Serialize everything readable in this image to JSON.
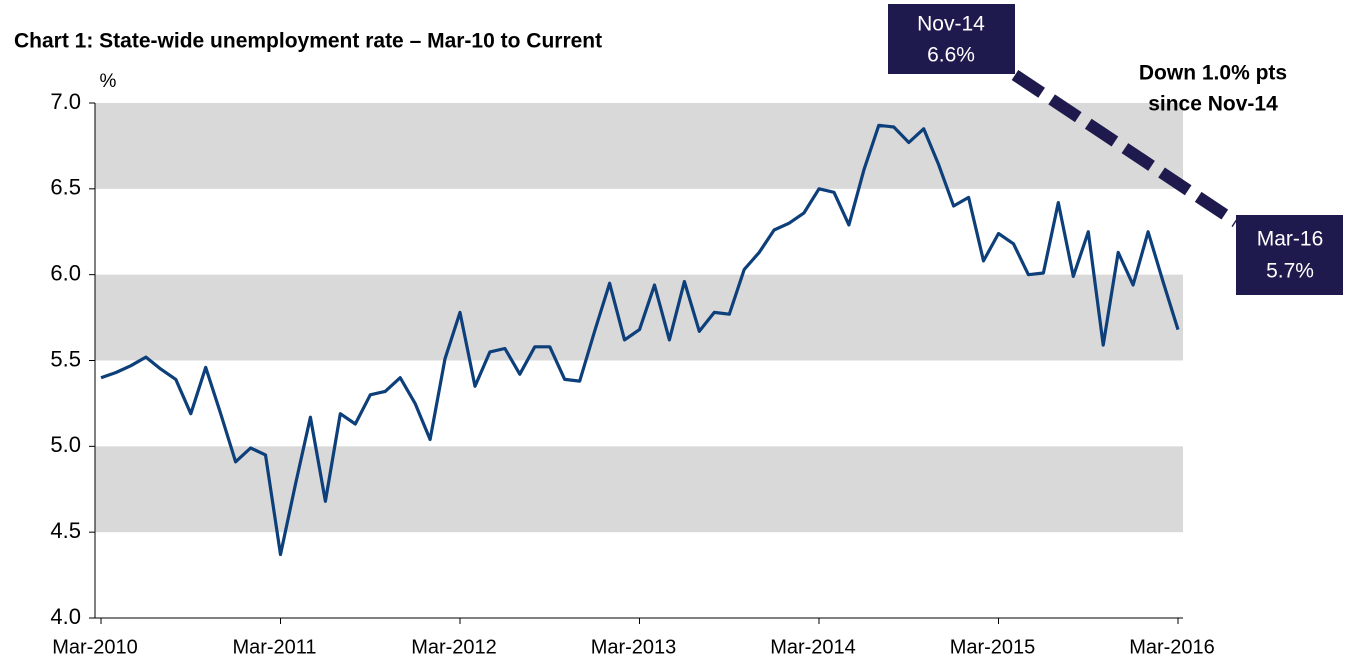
{
  "chart_data": {
    "type": "line",
    "title": "Chart 1: State-wide unemployment rate – Mar-10 to Current",
    "y_label": "%",
    "categories": [
      "Mar-2010",
      null,
      null,
      null,
      null,
      null,
      null,
      null,
      null,
      null,
      null,
      null,
      "Mar-2011",
      null,
      null,
      null,
      null,
      null,
      null,
      null,
      null,
      null,
      null,
      null,
      "Mar-2012",
      null,
      null,
      null,
      null,
      null,
      null,
      null,
      null,
      null,
      null,
      null,
      "Mar-2013",
      null,
      null,
      null,
      null,
      null,
      null,
      null,
      null,
      null,
      null,
      null,
      "Mar-2014",
      null,
      null,
      null,
      null,
      null,
      null,
      null,
      null,
      null,
      null,
      null,
      "Mar-2015",
      null,
      null,
      null,
      null,
      null,
      null,
      null,
      null,
      null,
      null,
      null,
      "Mar-2016"
    ],
    "series": [
      {
        "name": "Unemployment rate",
        "color": "#0d3f7a",
        "values": [
          5.4,
          5.43,
          5.47,
          5.52,
          5.45,
          5.39,
          5.19,
          5.46,
          5.19,
          4.91,
          4.99,
          4.95,
          4.37,
          4.78,
          5.17,
          4.68,
          5.19,
          5.13,
          5.3,
          5.32,
          5.4,
          5.25,
          5.04,
          5.51,
          5.78,
          5.35,
          5.55,
          5.57,
          5.42,
          5.58,
          5.58,
          5.39,
          5.38,
          5.67,
          5.95,
          5.62,
          5.68,
          5.94,
          5.62,
          5.96,
          5.67,
          5.78,
          5.77,
          6.03,
          6.13,
          6.26,
          6.3,
          6.36,
          6.5,
          6.48,
          6.29,
          6.61,
          6.87,
          6.86,
          6.77,
          6.85,
          6.64,
          6.4,
          6.45,
          6.08,
          6.24,
          6.18,
          6.0,
          6.01,
          6.42,
          5.99,
          6.25,
          5.59,
          6.13,
          5.94,
          6.25,
          5.96,
          5.68
        ]
      }
    ],
    "ylim": [
      4.0,
      7.0
    ],
    "yticks": [
      {
        "value": 4.0,
        "label": "4.0"
      },
      {
        "value": 4.5,
        "label": "4.5"
      },
      {
        "value": 5.0,
        "label": "5.0"
      },
      {
        "value": 5.5,
        "label": "5.5"
      },
      {
        "value": 6.0,
        "label": "6.0"
      },
      {
        "value": 6.5,
        "label": "6.5"
      },
      {
        "value": 7.0,
        "label": "7.0"
      }
    ],
    "bands": true,
    "annotations": [
      {
        "lines": [
          "Nov-14",
          "6.6%"
        ]
      },
      {
        "lines": [
          "Mar-16",
          "5.7%"
        ]
      },
      {
        "lines": [
          "Down 1.0% pts",
          "since Nov-14"
        ]
      }
    ]
  }
}
